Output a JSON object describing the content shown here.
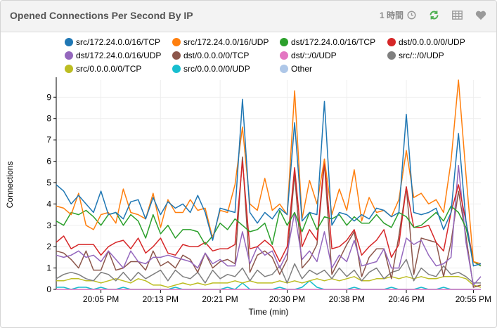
{
  "panel": {
    "title": "Opened Connections Per Second By IP",
    "time_range_label": "1 時間",
    "icons": [
      "clock-icon",
      "refresh-icon",
      "table-icon",
      "heart-icon"
    ]
  },
  "chart_data": {
    "type": "line",
    "xlabel": "Time (min)",
    "ylabel": "Connections",
    "ylim": [
      0,
      9.8
    ],
    "yticks": [
      0,
      1,
      2,
      3,
      4,
      5,
      6,
      7,
      8,
      9
    ],
    "xlim_minutes_after_2000": [
      -1,
      56
    ],
    "xtick_labels": [
      "20:05 PM",
      "20:13 PM",
      "20:21 PM",
      "20:30 PM",
      "20:38 PM",
      "20:46 PM",
      "20:55 PM"
    ],
    "xtick_minutes_after_2000": [
      5,
      13,
      21,
      30,
      38,
      46,
      55
    ],
    "x_minutes_after_2000": [
      -1,
      0,
      1,
      2,
      3,
      4,
      5,
      6,
      7,
      8,
      9,
      10,
      11,
      12,
      13,
      14,
      15,
      16,
      17,
      18,
      19,
      20,
      21,
      22,
      23,
      24,
      25,
      26,
      27,
      28,
      29,
      30,
      31,
      32,
      33,
      34,
      35,
      36,
      37,
      38,
      39,
      40,
      41,
      42,
      43,
      44,
      45,
      46,
      47,
      48,
      49,
      50,
      51,
      52,
      53,
      54,
      55,
      56
    ],
    "series": [
      {
        "name": "src/172.24.0.0/16/TCP",
        "color": "#1f77b4",
        "values": [
          4.9,
          4.6,
          4.0,
          4.4,
          4.0,
          3.6,
          4.6,
          3.5,
          3.6,
          3.3,
          4.1,
          4.2,
          3.3,
          4.3,
          3.5,
          4.1,
          3.8,
          4.0,
          3.6,
          4.4,
          3.6,
          2.3,
          3.8,
          3.7,
          3.6,
          8.9,
          3.6,
          3.1,
          3.6,
          3.3,
          3.8,
          3.5,
          7.8,
          3.2,
          3.6,
          3.5,
          8.8,
          3.0,
          3.6,
          3.5,
          3.2,
          3.5,
          3.3,
          3.8,
          3.7,
          3.4,
          3.6,
          8.2,
          3.6,
          3.5,
          3.6,
          3.8,
          2.8,
          3.6,
          7.3,
          3.2,
          1.1,
          1.2
        ]
      },
      {
        "name": "src/172.24.0.0/16/UDP",
        "color": "#ff7f0e",
        "values": [
          3.9,
          3.8,
          3.5,
          4.5,
          3.0,
          2.8,
          3.5,
          3.6,
          3.1,
          4.7,
          3.6,
          3.5,
          3.3,
          4.5,
          2.9,
          4.2,
          3.6,
          3.6,
          4.2,
          3.7,
          3.8,
          2.4,
          3.7,
          3.6,
          4.9,
          7.6,
          4.0,
          3.7,
          5.2,
          3.7,
          4.0,
          3.5,
          9.3,
          3.3,
          5.1,
          4.0,
          6.1,
          3.5,
          4.7,
          3.7,
          5.6,
          3.2,
          4.3,
          3.6,
          3.7,
          3.4,
          4.2,
          6.5,
          4.3,
          4.5,
          4.0,
          4.2,
          3.6,
          6.0,
          9.8,
          5.4,
          1.3,
          1.2
        ]
      },
      {
        "name": "dst/172.24.0.0/16/TCP",
        "color": "#2ca02c",
        "values": [
          3.2,
          3.0,
          3.6,
          3.5,
          3.7,
          3.4,
          3.0,
          3.5,
          3.6,
          3.0,
          3.5,
          3.2,
          2.4,
          3.5,
          2.6,
          3.0,
          2.4,
          2.8,
          2.8,
          2.7,
          2.1,
          2.5,
          3.1,
          2.8,
          3.3,
          3.0,
          2.7,
          2.8,
          3.1,
          2.1,
          3.7,
          3.0,
          3.6,
          2.7,
          3.6,
          2.8,
          3.4,
          3.3,
          3.5,
          3.0,
          3.4,
          3.1,
          3.1,
          3.5,
          3.1,
          2.9,
          3.6,
          3.4,
          2.9,
          3.0,
          3.3,
          3.6,
          3.2,
          3.9,
          3.6,
          2.9,
          1.3,
          1.1
        ]
      },
      {
        "name": "dst/0.0.0.0/0/UDP",
        "color": "#d62728",
        "values": [
          2.2,
          2.5,
          1.9,
          2.1,
          2.1,
          2.1,
          1.6,
          2.0,
          2.2,
          2.3,
          1.9,
          2.4,
          1.7,
          2.0,
          2.4,
          1.7,
          1.6,
          2.1,
          2.0,
          2.0,
          2.2,
          1.8,
          1.9,
          1.9,
          2.1,
          6.0,
          1.9,
          2.0,
          2.3,
          2.0,
          1.3,
          2.0,
          5.7,
          2.0,
          2.8,
          2.3,
          6.1,
          1.9,
          2.0,
          2.3,
          2.8,
          1.6,
          2.0,
          2.3,
          2.8,
          1.5,
          2.1,
          4.8,
          2.9,
          2.9,
          3.0,
          2.2,
          1.8,
          3.6,
          4.9,
          3.2,
          1.3,
          1.1
        ]
      },
      {
        "name": "dst/172.24.0.0/16/UDP",
        "color": "#9467bd",
        "values": [
          1.6,
          1.5,
          1.6,
          1.8,
          1.5,
          1.6,
          1.3,
          1.8,
          1.4,
          1.0,
          1.8,
          1.3,
          1.2,
          1.5,
          1.5,
          1.6,
          1.5,
          1.4,
          1.3,
          1.0,
          1.7,
          1.2,
          1.4,
          1.1,
          1.1,
          2.7,
          1.2,
          2.0,
          1.6,
          1.8,
          1.0,
          1.7,
          3.6,
          1.4,
          1.8,
          1.3,
          2.7,
          1.0,
          1.6,
          1.3,
          2.3,
          1.1,
          1.2,
          1.3,
          1.9,
          1.0,
          1.0,
          2.4,
          2.1,
          2.3,
          1.6,
          1.1,
          1.2,
          1.5,
          5.8,
          2.2,
          0.2,
          0.6
        ]
      },
      {
        "name": "dst/0.0.0.0/0/TCP",
        "color": "#8c564b",
        "values": [
          1.8,
          1.7,
          1.4,
          1.0,
          1.8,
          0.9,
          0.9,
          1.8,
          0.9,
          1.0,
          1.3,
          1.3,
          0.9,
          1.8,
          1.1,
          1.3,
          1.0,
          1.6,
          1.4,
          0.8,
          1.7,
          1.0,
          1.3,
          1.4,
          1.2,
          6.2,
          0.8,
          1.6,
          1.8,
          1.5,
          0.7,
          1.4,
          5.4,
          1.0,
          1.4,
          2.1,
          5.9,
          0.7,
          1.4,
          2.1,
          2.7,
          0.6,
          1.5,
          1.9,
          1.9,
          0.5,
          2.5,
          4.8,
          0.7,
          2.4,
          2.3,
          2.2,
          0.6,
          2.2,
          4.6,
          2.5,
          0.1,
          0.2
        ]
      },
      {
        "name": "dst/::/0/UDP",
        "color": "#e377c2",
        "values": [
          0.0,
          0.0,
          0.0,
          0.0,
          0.0,
          0.0,
          0.0,
          0.0,
          0.0,
          0.0,
          0.0,
          0.0,
          0.0,
          0.0,
          0.0,
          0.0,
          0.0,
          0.0,
          0.0,
          0.0,
          0.0,
          0.0,
          0.0,
          0.0,
          0.0,
          0.0,
          0.0,
          0.0,
          0.0,
          0.0,
          0.0,
          0.0,
          0.0,
          0.0,
          0.0,
          0.0,
          0.0,
          0.0,
          0.0,
          0.0,
          0.0,
          0.0,
          0.0,
          0.0,
          0.0,
          0.0,
          0.0,
          0.0,
          0.0,
          0.0,
          0.0,
          0.0,
          0.0,
          0.0,
          0.0,
          0.0,
          0.0,
          0.0
        ]
      },
      {
        "name": "src/::/0/UDP",
        "color": "#7f7f7f",
        "values": [
          0.5,
          0.7,
          0.8,
          0.7,
          0.5,
          0.4,
          0.8,
          0.7,
          0.4,
          0.8,
          0.4,
          0.8,
          0.5,
          0.7,
          0.9,
          0.4,
          0.9,
          0.6,
          0.5,
          0.8,
          0.3,
          0.9,
          0.5,
          0.7,
          0.6,
          1.0,
          0.4,
          0.9,
          0.6,
          0.7,
          1.1,
          0.3,
          1.2,
          0.5,
          0.9,
          0.7,
          0.9,
          0.5,
          1.0,
          0.6,
          0.9,
          0.4,
          0.8,
          1.0,
          0.5,
          0.8,
          0.9,
          1.4,
          0.4,
          1.0,
          0.7,
          0.6,
          1.1,
          0.7,
          0.8,
          0.6,
          0.3,
          0.3
        ]
      },
      {
        "name": "src/0.0.0.0/0/TCP",
        "color": "#bcbd22",
        "values": [
          0.4,
          0.4,
          0.5,
          0.5,
          0.4,
          0.4,
          0.3,
          0.4,
          0.5,
          0.4,
          0.3,
          0.5,
          0.4,
          0.2,
          0.2,
          0.1,
          0.2,
          0.3,
          0.2,
          0.3,
          0.2,
          0.3,
          0.3,
          0.3,
          0.4,
          0.3,
          0.4,
          0.3,
          0.3,
          0.3,
          0.4,
          0.3,
          0.4,
          0.3,
          0.4,
          0.5,
          0.4,
          0.5,
          0.4,
          0.5,
          0.6,
          0.4,
          0.4,
          0.5,
          0.5,
          0.6,
          0.5,
          0.6,
          0.5,
          0.6,
          0.5,
          0.5,
          0.6,
          0.6,
          0.6,
          0.5,
          0.2,
          0.1
        ]
      },
      {
        "name": "src/0.0.0.0/0/UDP",
        "color": "#17becf",
        "values": [
          0.1,
          0.1,
          0.0,
          0.1,
          0.1,
          0.0,
          0.1,
          0.0,
          0.0,
          0.1,
          0.0,
          0.0,
          0.0,
          0.0,
          0.0,
          0.0,
          0.1,
          0.0,
          0.0,
          0.0,
          0.0,
          0.0,
          0.0,
          0.1,
          0.0,
          0.3,
          0.0,
          0.0,
          0.0,
          0.0,
          0.1,
          0.0,
          0.0,
          0.1,
          0.4,
          0.1,
          0.0,
          0.0,
          0.0,
          0.0,
          0.1,
          0.0,
          0.0,
          0.0,
          0.0,
          0.1,
          0.0,
          0.0,
          0.0,
          0.1,
          0.0,
          0.0,
          0.1,
          0.0,
          0.0,
          0.0,
          0.0,
          0.0
        ]
      },
      {
        "name": "Other",
        "color": "#aec7e8",
        "values": [
          0.0,
          0.0,
          0.0,
          0.0,
          0.0,
          0.0,
          0.0,
          0.0,
          0.0,
          0.0,
          0.0,
          0.0,
          0.0,
          0.0,
          0.0,
          0.0,
          0.0,
          0.0,
          0.0,
          0.0,
          0.0,
          0.0,
          0.0,
          0.0,
          0.0,
          0.0,
          0.0,
          0.0,
          0.0,
          0.0,
          0.0,
          0.0,
          0.0,
          0.0,
          0.0,
          0.0,
          0.0,
          0.0,
          0.0,
          0.0,
          0.0,
          0.0,
          0.0,
          0.0,
          0.0,
          0.0,
          0.0,
          0.0,
          0.0,
          0.0,
          0.0,
          0.0,
          0.0,
          0.0,
          0.0,
          0.0,
          0.0,
          0.0
        ]
      }
    ],
    "grid": true,
    "legend_position": "top"
  }
}
